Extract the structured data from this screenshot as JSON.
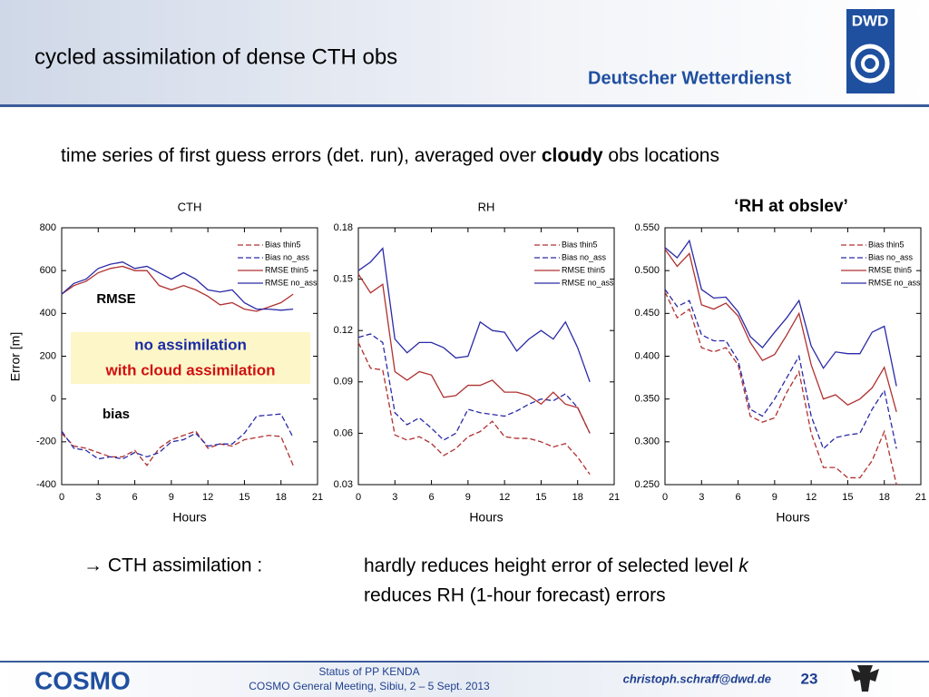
{
  "header": {
    "title": "cycled assimilation of dense CTH obs",
    "logo": "DWD",
    "organization": "Deutscher Wetterdienst"
  },
  "subtitle": [
    "time series of first guess errors (det. run),  averaged over ",
    "cloudy",
    " obs locations"
  ],
  "chart_data": [
    {
      "type": "line",
      "title": "CTH",
      "y_label": "Error [m]",
      "x_label": "Hours",
      "x": [
        0,
        1,
        2,
        3,
        4,
        5,
        6,
        7,
        8,
        9,
        10,
        11,
        12,
        13,
        14,
        15,
        16,
        17,
        18,
        19
      ],
      "xlim": [
        0,
        21
      ],
      "xticks": [
        0,
        3,
        6,
        9,
        12,
        15,
        18,
        21
      ],
      "ylim": [
        -400,
        800
      ],
      "yticks": [
        -400,
        -200,
        0,
        200,
        400,
        600,
        800
      ],
      "legend": "upper right",
      "annotations": [
        "RMSE",
        "no assimilation",
        "with cloud assimilation",
        "bias"
      ],
      "series": [
        {
          "name": "Bias thin5",
          "color": "#b03030",
          "dash": true,
          "values": [
            -160,
            -220,
            -230,
            -250,
            -270,
            -270,
            -240,
            -310,
            -230,
            -190,
            -170,
            -150,
            -230,
            -210,
            -220,
            -190,
            -180,
            -170,
            -175,
            -310
          ]
        },
        {
          "name": "Bias no_ass",
          "color": "#2a2aa8",
          "dash": true,
          "values": [
            -150,
            -230,
            -240,
            -280,
            -270,
            -280,
            -250,
            -270,
            -250,
            -200,
            -190,
            -160,
            -220,
            -210,
            -210,
            -160,
            -80,
            -75,
            -70,
            -180
          ]
        },
        {
          "name": "RMSE thin5",
          "color": "#b03030",
          "dash": false,
          "values": [
            490,
            530,
            550,
            590,
            610,
            620,
            600,
            600,
            530,
            510,
            530,
            510,
            480,
            440,
            450,
            420,
            410,
            430,
            450,
            490
          ]
        },
        {
          "name": "RMSE no_ass",
          "color": "#2a2aa8",
          "dash": false,
          "values": [
            490,
            540,
            560,
            610,
            630,
            640,
            610,
            620,
            590,
            560,
            590,
            560,
            510,
            500,
            510,
            450,
            420,
            420,
            415,
            420
          ]
        }
      ]
    },
    {
      "type": "line",
      "title": "RH",
      "x_label": "Hours",
      "x": [
        0,
        1,
        2,
        3,
        4,
        5,
        6,
        7,
        8,
        9,
        10,
        11,
        12,
        13,
        14,
        15,
        16,
        17,
        18,
        19
      ],
      "xlim": [
        0,
        21
      ],
      "xticks": [
        0,
        3,
        6,
        9,
        12,
        15,
        18,
        21
      ],
      "ylim": [
        0.03,
        0.18
      ],
      "yticks": [
        0.03,
        0.06,
        0.09,
        0.12,
        0.15,
        0.18
      ],
      "legend": "upper right",
      "series": [
        {
          "name": "Bias thin5",
          "color": "#b03030",
          "dash": true,
          "values": [
            0.113,
            0.098,
            0.097,
            0.059,
            0.056,
            0.058,
            0.054,
            0.047,
            0.051,
            0.058,
            0.061,
            0.067,
            0.058,
            0.057,
            0.057,
            0.055,
            0.052,
            0.054,
            0.046,
            0.036
          ]
        },
        {
          "name": "Bias no_ass",
          "color": "#2a2aa8",
          "dash": true,
          "values": [
            0.116,
            0.118,
            0.113,
            0.072,
            0.065,
            0.069,
            0.063,
            0.056,
            0.06,
            0.074,
            0.072,
            0.071,
            0.07,
            0.073,
            0.077,
            0.08,
            0.079,
            0.083,
            0.075,
            0.06
          ]
        },
        {
          "name": "RMSE thin5",
          "color": "#b03030",
          "dash": false,
          "values": [
            0.153,
            0.142,
            0.147,
            0.096,
            0.091,
            0.096,
            0.094,
            0.081,
            0.082,
            0.088,
            0.088,
            0.091,
            0.084,
            0.084,
            0.082,
            0.077,
            0.084,
            0.077,
            0.075,
            0.06
          ]
        },
        {
          "name": "RMSE no_ass",
          "color": "#2a2aa8",
          "dash": false,
          "values": [
            0.155,
            0.16,
            0.168,
            0.115,
            0.107,
            0.113,
            0.113,
            0.11,
            0.104,
            0.105,
            0.125,
            0.12,
            0.119,
            0.108,
            0.115,
            0.12,
            0.115,
            0.125,
            0.11,
            0.09
          ]
        }
      ]
    },
    {
      "type": "line",
      "title": "‘RH at obslev’",
      "x_label": "Hours",
      "x": [
        0,
        1,
        2,
        3,
        4,
        5,
        6,
        7,
        8,
        9,
        10,
        11,
        12,
        13,
        14,
        15,
        16,
        17,
        18,
        19
      ],
      "xlim": [
        0,
        21
      ],
      "xticks": [
        0,
        3,
        6,
        9,
        12,
        15,
        18,
        21
      ],
      "ylim": [
        0.25,
        0.55
      ],
      "yticks": [
        {
          "value": 0.25,
          "label": "0.250"
        },
        {
          "value": 0.3,
          "label": "0.300"
        },
        {
          "value": 0.35,
          "label": "0.350"
        },
        {
          "value": 0.4,
          "label": "0.400"
        },
        {
          "value": 0.45,
          "label": "0.450"
        },
        {
          "value": 0.5,
          "label": "0.500"
        },
        {
          "value": 0.55,
          "label": "0.550"
        }
      ],
      "legend": "upper right",
      "series": [
        {
          "name": "Bias thin5",
          "color": "#b03030",
          "dash": true,
          "values": [
            0.475,
            0.445,
            0.455,
            0.41,
            0.405,
            0.41,
            0.39,
            0.33,
            0.323,
            0.328,
            0.358,
            0.382,
            0.31,
            0.27,
            0.27,
            0.258,
            0.258,
            0.278,
            0.312,
            0.25
          ]
        },
        {
          "name": "Bias no_ass",
          "color": "#2a2aa8",
          "dash": true,
          "values": [
            0.478,
            0.458,
            0.465,
            0.425,
            0.418,
            0.418,
            0.395,
            0.338,
            0.33,
            0.35,
            0.375,
            0.4,
            0.33,
            0.292,
            0.305,
            0.308,
            0.31,
            0.338,
            0.36,
            0.292
          ]
        },
        {
          "name": "RMSE thin5",
          "color": "#b03030",
          "dash": false,
          "values": [
            0.525,
            0.505,
            0.52,
            0.46,
            0.455,
            0.462,
            0.447,
            0.416,
            0.395,
            0.402,
            0.425,
            0.45,
            0.39,
            0.35,
            0.355,
            0.343,
            0.35,
            0.363,
            0.387,
            0.335
          ]
        },
        {
          "name": "RMSE no_ass",
          "color": "#2a2aa8",
          "dash": false,
          "values": [
            0.527,
            0.515,
            0.535,
            0.478,
            0.468,
            0.469,
            0.452,
            0.423,
            0.41,
            0.428,
            0.445,
            0.465,
            0.412,
            0.386,
            0.405,
            0.403,
            0.403,
            0.428,
            0.435,
            0.365
          ]
        }
      ]
    }
  ],
  "conclusion": {
    "label": "→  CTH assimilation :",
    "line1": "hardly reduces height error of selected level ",
    "line1_italic": "k",
    "line2": "reduces  RH (1-hour forecast) errors"
  },
  "footer": {
    "logo": "COSMO",
    "line1": "Status of PP KENDA",
    "line2": "COSMO General Meeting, Sibiu, 2 – 5 Sept. 2013",
    "email": "christoph.schraff@dwd.de",
    "page": "23"
  }
}
